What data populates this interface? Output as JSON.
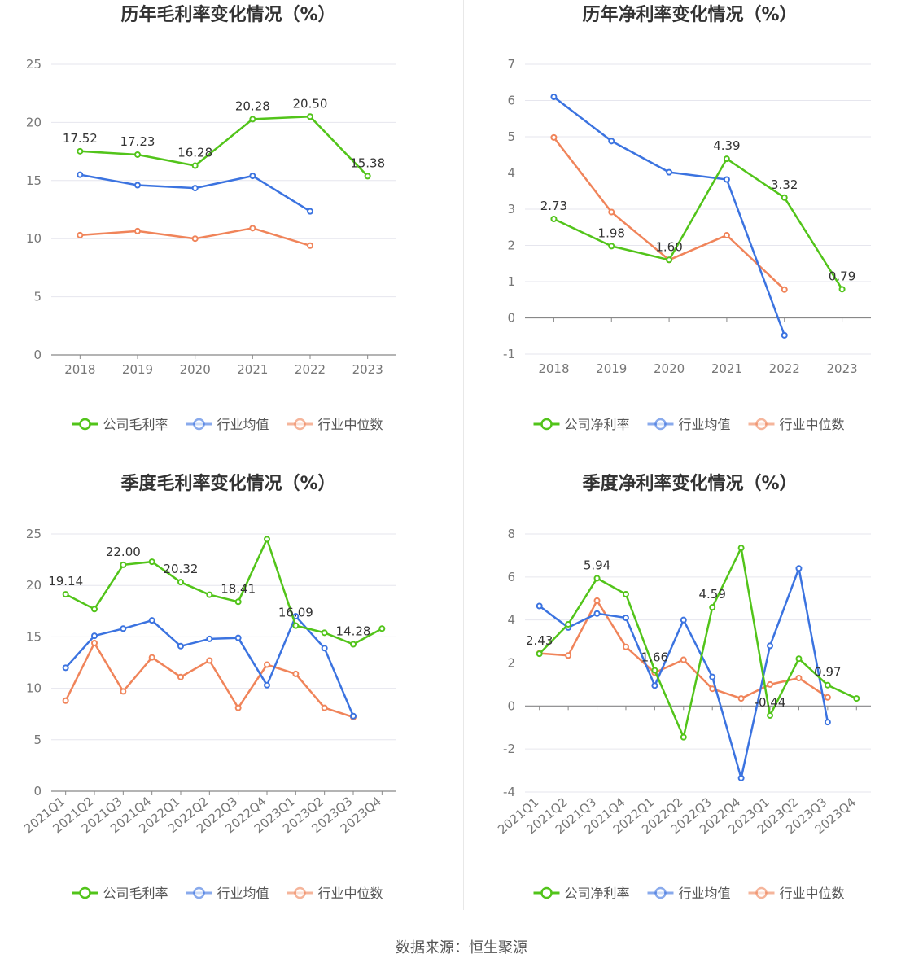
{
  "source_text": "数据来源：恒生聚源",
  "legend": {
    "company_gross": "公司毛利率",
    "company_net": "公司净利率",
    "industry_avg": "行业均值",
    "industry_median": "行业中位数"
  },
  "colors": {
    "company": "#52c41a",
    "industry_avg": "#3b73e0",
    "industry_median": "#f0845a"
  },
  "chart_data": [
    {
      "id": "annual-gross",
      "type": "line",
      "title": "历年毛利率变化情况（%）",
      "categories": [
        "2018",
        "2019",
        "2020",
        "2021",
        "2022",
        "2023"
      ],
      "ylim": [
        0,
        25
      ],
      "yticks": [
        0,
        5,
        10,
        15,
        20,
        25
      ],
      "legend_position": "bottom",
      "series": [
        {
          "name": "公司毛利率",
          "color": "#52c41a",
          "values": [
            17.52,
            17.23,
            16.28,
            20.28,
            20.5,
            15.38
          ],
          "labels": [
            "17.52",
            "17.23",
            "16.28",
            "20.28",
            "20.50",
            "15.38"
          ]
        },
        {
          "name": "行业均值",
          "color": "#3b73e0",
          "values": [
            15.5,
            14.6,
            14.35,
            15.4,
            12.35,
            null
          ]
        },
        {
          "name": "行业中位数",
          "color": "#f0845a",
          "values": [
            10.3,
            10.65,
            10.0,
            10.9,
            9.4,
            null
          ]
        }
      ]
    },
    {
      "id": "annual-net",
      "type": "line",
      "title": "历年净利率变化情况（%）",
      "categories": [
        "2018",
        "2019",
        "2020",
        "2021",
        "2022",
        "2023"
      ],
      "ylim": [
        -1,
        7
      ],
      "yticks": [
        -1,
        0,
        1,
        2,
        3,
        4,
        5,
        6,
        7
      ],
      "legend_position": "bottom",
      "series": [
        {
          "name": "公司净利率",
          "color": "#52c41a",
          "values": [
            2.73,
            1.98,
            1.6,
            4.39,
            3.32,
            0.79
          ],
          "labels": [
            "2.73",
            "1.98",
            "1.60",
            "4.39",
            "3.32",
            "0.79"
          ]
        },
        {
          "name": "行业均值",
          "color": "#3b73e0",
          "values": [
            6.1,
            4.88,
            4.02,
            3.82,
            -0.48,
            null
          ]
        },
        {
          "name": "行业中位数",
          "color": "#f0845a",
          "values": [
            4.98,
            2.92,
            1.6,
            2.28,
            0.78,
            null
          ]
        }
      ]
    },
    {
      "id": "quarterly-gross",
      "type": "line",
      "title": "季度毛利率变化情况（%）",
      "categories": [
        "2021Q1",
        "2021Q2",
        "2021Q3",
        "2021Q4",
        "2022Q1",
        "2022Q2",
        "2022Q3",
        "2022Q4",
        "2023Q1",
        "2023Q2",
        "2023Q3",
        "2023Q4"
      ],
      "ylim": [
        0,
        25
      ],
      "yticks": [
        0,
        5,
        10,
        15,
        20,
        25
      ],
      "legend_position": "bottom",
      "series": [
        {
          "name": "公司毛利率",
          "color": "#52c41a",
          "values": [
            19.14,
            17.7,
            22.0,
            22.3,
            20.32,
            19.1,
            18.41,
            24.5,
            16.09,
            15.4,
            14.28,
            15.8
          ],
          "labels": [
            "19.14",
            "",
            "22.00",
            "",
            "20.32",
            "",
            "18.41",
            "",
            "16.09",
            "",
            "14.28",
            ""
          ]
        },
        {
          "name": "行业均值",
          "color": "#3b73e0",
          "values": [
            12.0,
            15.1,
            15.8,
            16.6,
            14.1,
            14.8,
            14.9,
            10.3,
            17.0,
            13.9,
            7.3,
            null
          ]
        },
        {
          "name": "行业中位数",
          "color": "#f0845a",
          "values": [
            8.8,
            14.4,
            9.7,
            13.0,
            11.1,
            12.7,
            8.1,
            12.3,
            11.4,
            8.1,
            7.2,
            null
          ]
        }
      ]
    },
    {
      "id": "quarterly-net",
      "type": "line",
      "title": "季度净利率变化情况（%）",
      "categories": [
        "2021Q1",
        "2021Q2",
        "2021Q3",
        "2021Q4",
        "2022Q1",
        "2022Q2",
        "2022Q3",
        "2022Q4",
        "2023Q1",
        "2023Q2",
        "2023Q3",
        "2023Q4"
      ],
      "ylim": [
        -4,
        8
      ],
      "yticks": [
        -4,
        -2,
        0,
        2,
        4,
        6,
        8
      ],
      "legend_position": "bottom",
      "series": [
        {
          "name": "公司净利率",
          "color": "#52c41a",
          "values": [
            2.43,
            3.8,
            5.94,
            5.2,
            1.66,
            -1.45,
            4.59,
            7.35,
            -0.44,
            2.2,
            0.97,
            0.35
          ],
          "labels": [
            "2.43",
            "",
            "5.94",
            "",
            "1.66",
            "",
            "4.59",
            "",
            "-0.44",
            "",
            "0.97",
            ""
          ]
        },
        {
          "name": "行业均值",
          "color": "#3b73e0",
          "values": [
            4.65,
            3.65,
            4.3,
            4.1,
            0.95,
            4.0,
            1.35,
            -3.35,
            2.8,
            6.4,
            -0.75,
            null
          ]
        },
        {
          "name": "行业中位数",
          "color": "#f0845a",
          "values": [
            2.45,
            2.35,
            4.9,
            2.75,
            1.55,
            2.15,
            0.8,
            0.35,
            1.0,
            1.3,
            0.4,
            null
          ]
        }
      ]
    }
  ]
}
